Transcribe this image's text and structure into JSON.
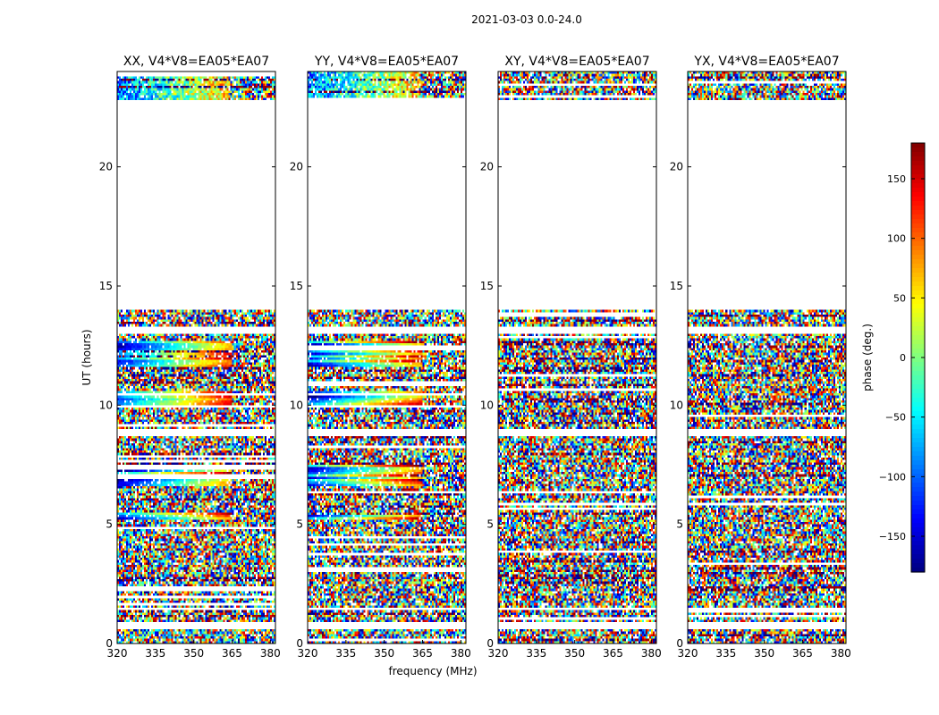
{
  "figure": {
    "suptitle": "2021-03-03 0.0-24.0",
    "shared_xlabel": "frequency (MHz)",
    "shared_ylabel": "UT (hours)"
  },
  "colorbar": {
    "label": "phase (deg.)",
    "range": [
      -180,
      180
    ],
    "ticks": [
      -150,
      -100,
      -50,
      0,
      50,
      100,
      150
    ],
    "colormap": "jet",
    "colors": [
      "#00007f",
      "#0000ff",
      "#007fff",
      "#00ffff",
      "#7fff7f",
      "#ffff00",
      "#ff7f00",
      "#ff0000",
      "#7f0000"
    ]
  },
  "chart_data": [
    {
      "type": "heatmap",
      "title": "XX, V4*V8=EA05*EA07",
      "xlabel": "",
      "ylabel": "UT (hours)",
      "xlim": [
        320,
        382
      ],
      "ylim": [
        0,
        24
      ],
      "xticks": [
        320,
        335,
        350,
        365,
        380
      ],
      "yticks": [
        0,
        5,
        10,
        15,
        20
      ],
      "value": "phase (deg.)",
      "gap_hours": [
        [
          0.62,
          0.93
        ],
        [
          1.4,
          1.55
        ],
        [
          8.7,
          8.95
        ],
        [
          13.05,
          13.3
        ],
        [
          14.0,
          22.8
        ]
      ],
      "coherent_bands": [
        [
          5.2,
          5.45
        ],
        [
          6.6,
          7.5
        ],
        [
          9.9,
          10.6
        ],
        [
          11.6,
          12.7
        ]
      ],
      "noise_only": false
    },
    {
      "type": "heatmap",
      "title": "YY, V4*V8=EA05*EA07",
      "xlabel": "frequency (MHz)",
      "ylabel": "",
      "xlim": [
        320,
        382
      ],
      "ylim": [
        0,
        24
      ],
      "xticks": [
        320,
        335,
        350,
        365,
        380
      ],
      "yticks": [
        0,
        5,
        10,
        15,
        20
      ],
      "value": "phase (deg.)",
      "gap_hours": [
        [
          0.62,
          0.93
        ],
        [
          1.4,
          1.55
        ],
        [
          8.7,
          8.95
        ],
        [
          13.05,
          13.3
        ],
        [
          14.0,
          22.8
        ]
      ],
      "coherent_bands": [
        [
          5.2,
          5.45
        ],
        [
          6.6,
          7.5
        ],
        [
          9.9,
          10.6
        ],
        [
          11.6,
          12.7
        ]
      ],
      "noise_only": false
    },
    {
      "type": "heatmap",
      "title": "XY, V4*V8=EA05*EA07",
      "xlabel": "",
      "ylabel": "",
      "xlim": [
        320,
        382
      ],
      "ylim": [
        0,
        24
      ],
      "xticks": [
        320,
        335,
        350,
        365,
        380
      ],
      "yticks": [
        0,
        5,
        10,
        15,
        20
      ],
      "value": "phase (deg.)",
      "gap_hours": [
        [
          0.62,
          0.93
        ],
        [
          1.4,
          1.55
        ],
        [
          8.7,
          8.95
        ],
        [
          13.05,
          13.3
        ],
        [
          14.0,
          22.8
        ]
      ],
      "coherent_bands": [],
      "noise_only": true
    },
    {
      "type": "heatmap",
      "title": "YX, V4*V8=EA05*EA07",
      "xlabel": "",
      "ylabel": "",
      "xlim": [
        320,
        382
      ],
      "ylim": [
        0,
        24
      ],
      "xticks": [
        320,
        335,
        350,
        365,
        380
      ],
      "yticks": [
        0,
        5,
        10,
        15,
        20
      ],
      "value": "phase (deg.)",
      "gap_hours": [
        [
          0.62,
          0.93
        ],
        [
          1.4,
          1.55
        ],
        [
          8.7,
          8.95
        ],
        [
          13.05,
          13.3
        ],
        [
          14.0,
          22.8
        ]
      ],
      "coherent_bands": [],
      "noise_only": true
    }
  ]
}
